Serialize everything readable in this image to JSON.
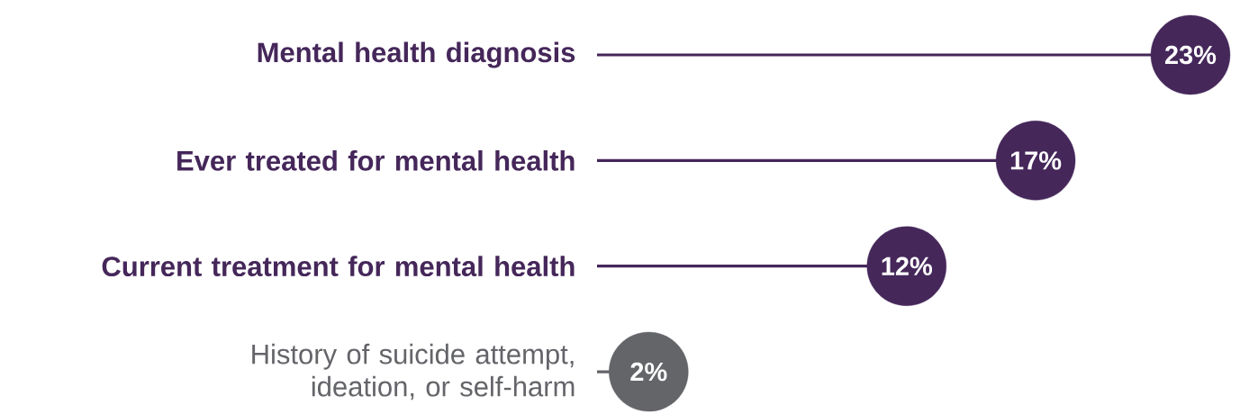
{
  "chart_data": {
    "type": "lollipop",
    "orientation": "horizontal",
    "marker": "circle",
    "categories": [
      "Mental health diagnosis",
      "Ever treated for mental health",
      "Current treatment for mental health",
      "History of suicide attempt, ideation, or self-harm"
    ],
    "values": [
      23,
      17,
      12,
      2
    ],
    "value_labels": [
      "23%",
      "17%",
      "12%",
      "2%"
    ],
    "colors": [
      "#45275a",
      "#45275a",
      "#45275a",
      "#646569"
    ]
  }
}
